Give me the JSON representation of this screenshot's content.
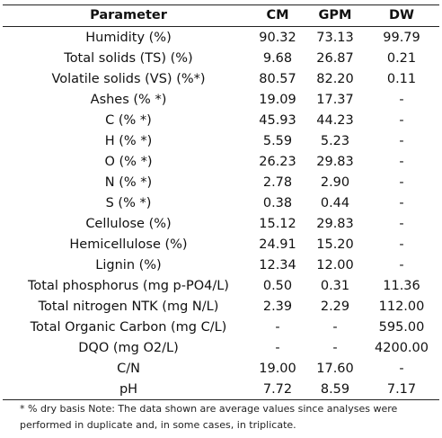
{
  "table": {
    "header": [
      "Parameter",
      "CM",
      "GPM",
      "DW"
    ],
    "rows": [
      [
        "Humidity (%)",
        "90.32",
        "73.13",
        "99.79"
      ],
      [
        "Total solids (TS) (%)",
        "9.68",
        "26.87",
        "0.21"
      ],
      [
        "Volatile solids (VS) (%*)",
        "80.57",
        "82.20",
        "0.11"
      ],
      [
        "Ashes (% *)",
        "19.09",
        "17.37",
        "-"
      ],
      [
        "C (% *)",
        "45.93",
        "44.23",
        "-"
      ],
      [
        "H (% *)",
        "5.59",
        "5.23",
        "-"
      ],
      [
        "O (% *)",
        "26.23",
        "29.83",
        "-"
      ],
      [
        "N (% *)",
        "2.78",
        "2.90",
        "-"
      ],
      [
        "S (% *)",
        "0.38",
        "0.44",
        "-"
      ],
      [
        "Cellulose (%)",
        "15.12",
        "29.83",
        "-"
      ],
      [
        "Hemicellulose (%)",
        "24.91",
        "15.20",
        "-"
      ],
      [
        "Lignin (%)",
        "12.34",
        "12.00",
        "-"
      ],
      [
        "Total phosphorus (mg p-PO4/L)",
        "0.50",
        "0.31",
        "11.36"
      ],
      [
        "Total nitrogen NTK (mg N/L)",
        "2.39",
        "2.29",
        "112.00"
      ],
      [
        "Total Organic Carbon (mg C/L)",
        "-",
        "-",
        "595.00"
      ],
      [
        "DQO (mg O2/L)",
        "-",
        "-",
        "4200.00"
      ],
      [
        "C/N",
        "19.00",
        "17.60",
        "-"
      ],
      [
        "pH",
        "7.72",
        "8.59",
        "7.17"
      ]
    ],
    "note": "* % dry basis Note: The data shown are average values since analyses were performed in duplicate and, in some cases, in triplicate."
  }
}
